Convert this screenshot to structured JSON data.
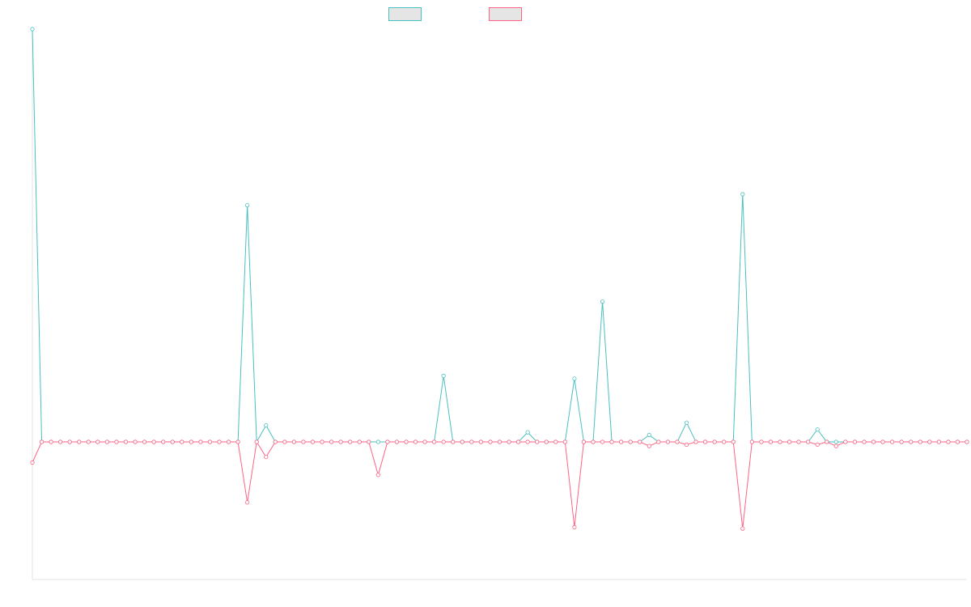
{
  "chart_data": {
    "type": "line",
    "title": "",
    "xlabel": "",
    "ylabel": "",
    "legend_position": "top-center",
    "grid": false,
    "x": [
      0,
      2,
      4,
      6,
      8,
      10,
      12,
      14,
      16,
      18,
      20,
      22,
      24,
      26,
      28,
      30,
      32,
      34,
      36,
      38,
      40,
      42,
      44,
      46,
      48,
      50,
      52,
      54,
      56,
      58,
      60,
      62,
      64,
      66,
      68,
      70,
      72,
      74,
      76,
      78,
      80,
      82,
      84,
      86,
      88,
      90,
      92,
      94,
      96,
      98,
      100,
      102,
      104,
      106,
      108,
      110,
      112,
      114,
      116,
      118,
      120,
      122,
      124,
      126,
      128,
      130,
      132,
      134,
      136,
      138,
      140,
      142,
      144,
      146,
      148,
      150,
      152,
      154,
      156,
      158,
      160,
      162,
      164,
      166,
      168,
      170,
      172,
      174,
      176,
      178,
      180,
      182,
      184,
      186,
      188,
      190,
      192,
      194,
      196,
      198,
      200
    ],
    "ylim": [
      -100,
      300
    ],
    "series": [
      {
        "color": "#4bc0c0",
        "fill": "#e5e5e5",
        "values": [
          300,
          0,
          0,
          0,
          0,
          0,
          0,
          0,
          0,
          0,
          0,
          0,
          0,
          0,
          0,
          0,
          0,
          0,
          0,
          0,
          0,
          0,
          0,
          172,
          0,
          12,
          0,
          0,
          0,
          0,
          0,
          0,
          0,
          0,
          0,
          0,
          0,
          0,
          0,
          0,
          0,
          0,
          0,
          0,
          48,
          0,
          0,
          0,
          0,
          0,
          0,
          0,
          0,
          7,
          0,
          0,
          0,
          0,
          46,
          0,
          0,
          102,
          0,
          0,
          0,
          0,
          5,
          0,
          0,
          0,
          14,
          0,
          0,
          0,
          0,
          0,
          180,
          0,
          0,
          0,
          0,
          0,
          0,
          0,
          9,
          0,
          0,
          0,
          0,
          0,
          0,
          0,
          0,
          0,
          0,
          0,
          0,
          0,
          0,
          0,
          0
        ]
      },
      {
        "color": "#ff6384",
        "fill": "#e5e5e5",
        "values": [
          -15,
          0,
          0,
          0,
          0,
          0,
          0,
          0,
          0,
          0,
          0,
          0,
          0,
          0,
          0,
          0,
          0,
          0,
          0,
          0,
          0,
          0,
          0,
          -44,
          0,
          -11,
          0,
          0,
          0,
          0,
          0,
          0,
          0,
          0,
          0,
          0,
          0,
          -24,
          0,
          0,
          0,
          0,
          0,
          0,
          0,
          0,
          0,
          0,
          0,
          0,
          0,
          0,
          0,
          0,
          0,
          0,
          0,
          0,
          -62,
          0,
          0,
          0,
          0,
          0,
          0,
          0,
          -3,
          0,
          0,
          0,
          -2,
          0,
          0,
          0,
          0,
          0,
          -63,
          0,
          0,
          0,
          0,
          0,
          0,
          0,
          -2,
          0,
          -3,
          0,
          0,
          0,
          0,
          0,
          0,
          0,
          0,
          0,
          0,
          0,
          0,
          0,
          0
        ]
      }
    ]
  }
}
